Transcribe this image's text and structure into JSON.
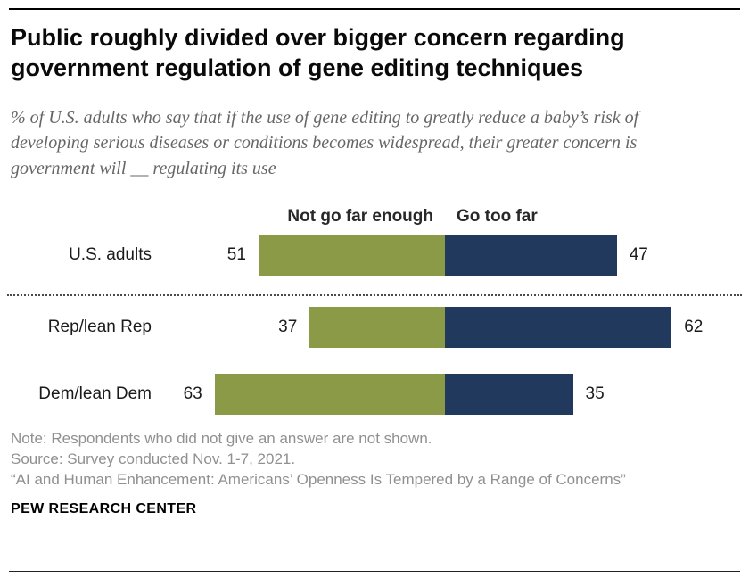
{
  "header": {
    "title": "Public roughly divided over bigger concern regarding government regulation of gene editing techniques",
    "subtitle": "% of U.S. adults who say that if the use of gene editing to greatly reduce a baby’s risk of developing serious diseases or conditions becomes widespread, their greater concern is government will __ regulating its use"
  },
  "chart_data": {
    "type": "bar",
    "orientation": "horizontal-diverging",
    "unit": "%",
    "legend_position": "above-bars",
    "legend": [
      {
        "label": "Not go far enough",
        "color": "#8b9a46"
      },
      {
        "label": "Go too far",
        "color": "#20395c"
      }
    ],
    "categories": [
      "U.S. adults",
      "Rep/lean Rep",
      "Dem/lean Dem"
    ],
    "series": [
      {
        "name": "Not go far enough",
        "values": [
          51,
          37,
          63
        ]
      },
      {
        "name": "Go too far",
        "values": [
          47,
          62,
          35
        ]
      }
    ],
    "divider_after_category": "U.S. adults",
    "grid": false
  },
  "footer": {
    "note": "Note: Respondents who did not give an answer are not shown.",
    "source": "Source: Survey conducted Nov. 1-7, 2021.",
    "report": "“AI and Human Enhancement: Americans’ Openness Is Tempered by a Range of Concerns”",
    "brand": "PEW RESEARCH CENTER"
  }
}
